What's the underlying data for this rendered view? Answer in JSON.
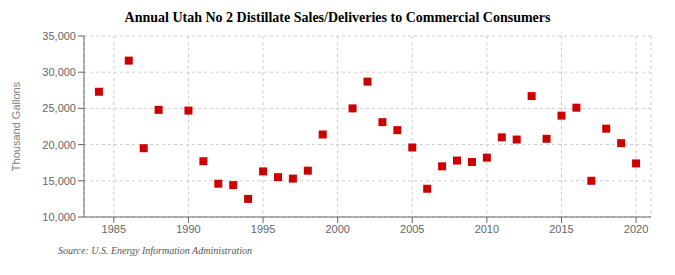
{
  "chart_data": {
    "type": "scatter",
    "title": "Annual Utah No 2 Distillate Sales/Deliveries to Commercial Consumers",
    "ylabel": "Thousand Gallons",
    "source": "Source: U.S. Energy Information Administration",
    "x": [
      1984,
      1986,
      1987,
      1988,
      1990,
      1991,
      1992,
      1993,
      1994,
      1995,
      1996,
      1997,
      1998,
      1999,
      2001,
      2002,
      2003,
      2004,
      2005,
      2006,
      2007,
      2008,
      2009,
      2010,
      2011,
      2012,
      2013,
      2014,
      2015,
      2016,
      2017,
      2018,
      2019,
      2020
    ],
    "values": [
      27300,
      31600,
      19500,
      24800,
      24700,
      17700,
      14600,
      14400,
      12500,
      16300,
      15500,
      15300,
      16400,
      21400,
      25000,
      28700,
      23100,
      22000,
      19600,
      13900,
      17000,
      17800,
      17600,
      18200,
      21000,
      20700,
      26700,
      20800,
      24000,
      25100,
      15000,
      22200,
      20200,
      17400
    ],
    "color": "#cc0000",
    "marker": "square",
    "xlim": [
      1983,
      2021
    ],
    "ylim": [
      10000,
      35000
    ],
    "xticks": [
      1985,
      1990,
      1995,
      2000,
      2005,
      2010,
      2015,
      2020
    ],
    "yticks": [
      {
        "value": 10000,
        "label": "10,000"
      },
      {
        "value": 15000,
        "label": "15,000"
      },
      {
        "value": 20000,
        "label": "20,000"
      },
      {
        "value": 25000,
        "label": "25,000"
      },
      {
        "value": 30000,
        "label": "30,000"
      },
      {
        "value": 35000,
        "label": "35,000"
      }
    ],
    "grid": true
  }
}
